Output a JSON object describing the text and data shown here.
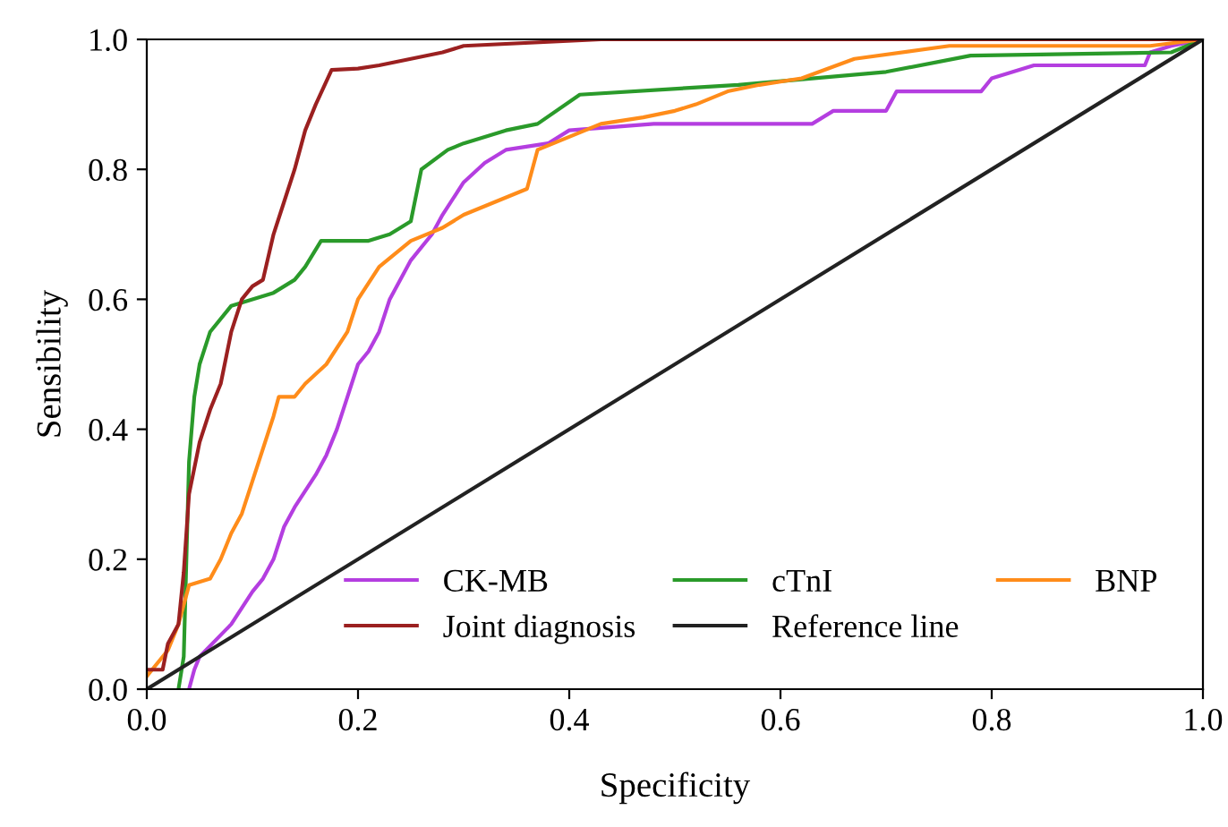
{
  "chart_data": {
    "type": "line",
    "xlabel": "Specificity",
    "ylabel": "Sensibility",
    "xlim": [
      0,
      1
    ],
    "ylim": [
      0,
      1
    ],
    "xticks": [
      {
        "value": 0,
        "label": "0.0"
      },
      0.2,
      0.4,
      0.6,
      0.8,
      {
        "value": 1,
        "label": "1.0"
      }
    ],
    "yticks": [
      {
        "value": 0,
        "label": "0.0"
      },
      0.2,
      0.4,
      0.6,
      0.8,
      {
        "value": 1,
        "label": "1.0"
      }
    ],
    "grid": false,
    "legend": "bottom right",
    "marker": "none",
    "line_style": "solid",
    "series": [
      {
        "name": "CK-MB",
        "color": "#b43ee0",
        "x": [
          0.04,
          0.045,
          0.05,
          0.08,
          0.1,
          0.11,
          0.12,
          0.13,
          0.14,
          0.16,
          0.17,
          0.18,
          0.19,
          0.2,
          0.21,
          0.22,
          0.23,
          0.25,
          0.27,
          0.28,
          0.3,
          0.32,
          0.34,
          0.38,
          0.4,
          0.48,
          0.63,
          0.65,
          0.7,
          0.71,
          0.79,
          0.8,
          0.82,
          0.84,
          0.945,
          0.95,
          0.97,
          1.0
        ],
        "values": [
          0,
          0.03,
          0.05,
          0.1,
          0.15,
          0.17,
          0.2,
          0.25,
          0.28,
          0.33,
          0.36,
          0.4,
          0.45,
          0.5,
          0.52,
          0.55,
          0.6,
          0.66,
          0.7,
          0.73,
          0.78,
          0.81,
          0.83,
          0.84,
          0.86,
          0.87,
          0.87,
          0.89,
          0.89,
          0.92,
          0.92,
          0.94,
          0.95,
          0.96,
          0.96,
          0.98,
          0.99,
          1.0
        ]
      },
      {
        "name": "cTnI",
        "color": "#2a9a2a",
        "x": [
          0.03,
          0.035,
          0.04,
          0.045,
          0.05,
          0.06,
          0.08,
          0.1,
          0.12,
          0.14,
          0.15,
          0.165,
          0.21,
          0.23,
          0.25,
          0.26,
          0.285,
          0.3,
          0.32,
          0.34,
          0.37,
          0.41,
          0.56,
          0.7,
          0.78,
          0.97,
          1.0
        ],
        "values": [
          0,
          0.05,
          0.35,
          0.45,
          0.5,
          0.55,
          0.59,
          0.6,
          0.61,
          0.63,
          0.65,
          0.69,
          0.69,
          0.7,
          0.72,
          0.8,
          0.83,
          0.84,
          0.85,
          0.86,
          0.87,
          0.915,
          0.93,
          0.95,
          0.975,
          0.98,
          1.0
        ]
      },
      {
        "name": "BNP",
        "color": "#ff8c1a",
        "x": [
          0,
          0.02,
          0.03,
          0.04,
          0.06,
          0.07,
          0.08,
          0.09,
          0.1,
          0.11,
          0.12,
          0.125,
          0.14,
          0.15,
          0.17,
          0.19,
          0.2,
          0.22,
          0.25,
          0.28,
          0.3,
          0.33,
          0.36,
          0.37,
          0.4,
          0.43,
          0.47,
          0.5,
          0.52,
          0.55,
          0.58,
          0.62,
          0.67,
          0.76,
          0.95,
          1.0
        ],
        "values": [
          0.02,
          0.06,
          0.1,
          0.16,
          0.17,
          0.2,
          0.24,
          0.27,
          0.32,
          0.37,
          0.42,
          0.45,
          0.45,
          0.47,
          0.5,
          0.55,
          0.6,
          0.65,
          0.69,
          0.71,
          0.73,
          0.75,
          0.77,
          0.83,
          0.85,
          0.87,
          0.88,
          0.89,
          0.9,
          0.92,
          0.93,
          0.94,
          0.97,
          0.99,
          0.99,
          1.0
        ]
      },
      {
        "name": "Joint diagnosis",
        "color": "#9b2020",
        "x": [
          0,
          0.015,
          0.02,
          0.03,
          0.035,
          0.04,
          0.05,
          0.06,
          0.07,
          0.08,
          0.09,
          0.1,
          0.11,
          0.12,
          0.13,
          0.14,
          0.15,
          0.16,
          0.175,
          0.2,
          0.22,
          0.25,
          0.28,
          0.3,
          0.43,
          1.0
        ],
        "values": [
          0.03,
          0.03,
          0.07,
          0.1,
          0.18,
          0.3,
          0.38,
          0.43,
          0.47,
          0.55,
          0.6,
          0.62,
          0.63,
          0.7,
          0.75,
          0.8,
          0.86,
          0.9,
          0.953,
          0.955,
          0.96,
          0.97,
          0.98,
          0.99,
          1.0,
          1.0
        ]
      },
      {
        "name": "Reference line",
        "color": "#222222",
        "x": [
          0,
          1
        ],
        "values": [
          0,
          1
        ]
      }
    ]
  }
}
